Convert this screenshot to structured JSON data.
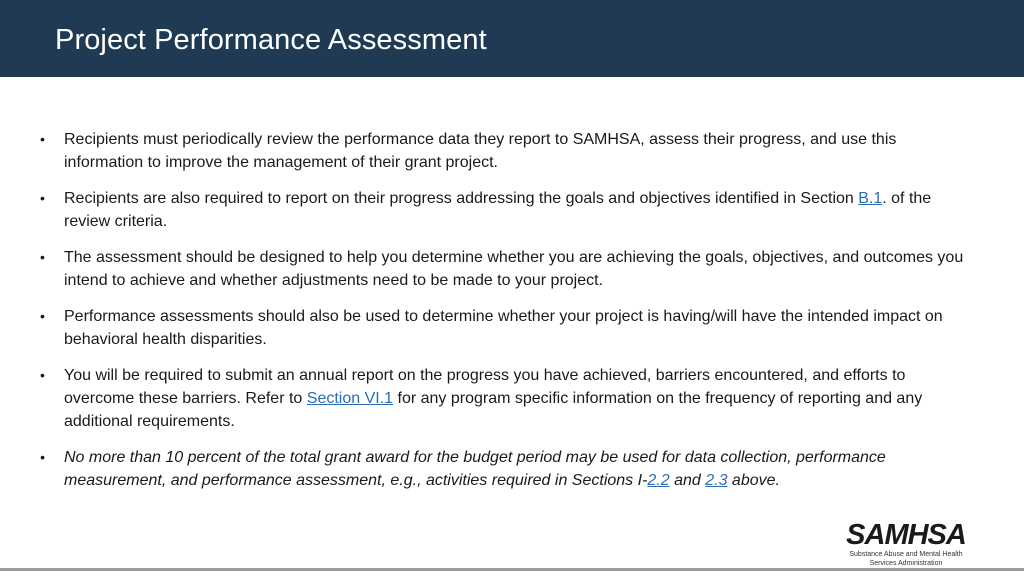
{
  "header": {
    "title": "Project Performance Assessment"
  },
  "colors": {
    "header_bg": "#1f3a52",
    "link": "#2a6db5"
  },
  "bullets": [
    {
      "text": "Recipients must periodically review the performance data they report to SAMHSA, assess their progress, and use this information to improve the management of their grant project."
    },
    {
      "before": "Recipients are also required to report on their progress addressing the goals and objectives identified in Section ",
      "link": "B.1",
      "after": ". of the review criteria."
    },
    {
      "text": "The assessment should be designed to help you determine whether you are achieving the goals, objectives, and outcomes you intend to achieve and whether adjustments need to be made to your project."
    },
    {
      "text": "Performance assessments should also be used to determine whether your project is having/will have the intended impact on behavioral health disparities."
    },
    {
      "before": "You will be required to submit an annual report on the progress you have achieved, barriers encountered, and efforts to overcome these barriers.  Refer to ",
      "link": "Section VI.1",
      "after": " for any program specific information on the frequency of reporting and any additional requirements."
    },
    {
      "before": "No more than 10 percent of the total grant award for the budget period may be used for data collection, performance measurement, and performance assessment, e.g., activities required in Sections I-",
      "link1": "2.2",
      "middle": " and ",
      "link2": "2.3",
      "after": " above."
    }
  ],
  "bullet_symbol": "•",
  "logo": {
    "name": "SAMHSA",
    "subtitle_line1": "Substance Abuse and Mental Health",
    "subtitle_line2": "Services Administration"
  }
}
